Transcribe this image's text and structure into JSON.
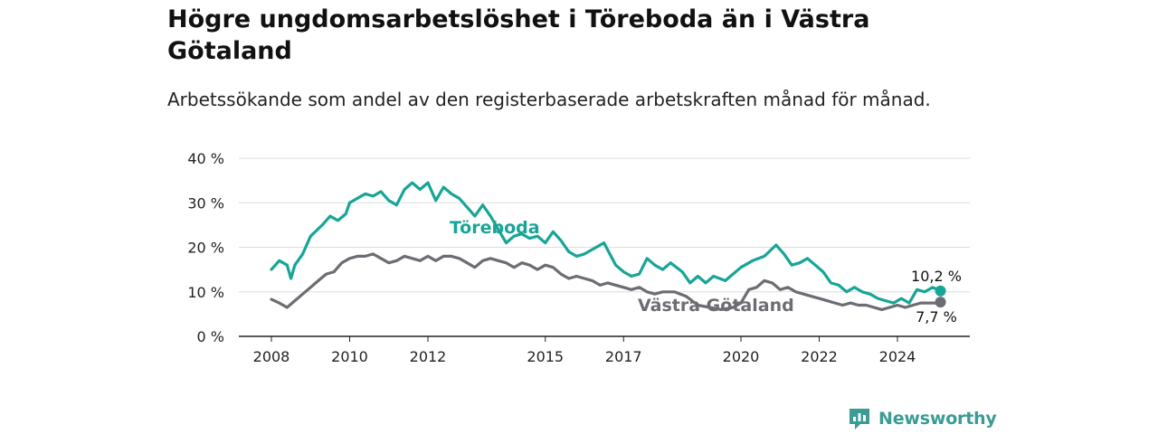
{
  "title": "Högre ungdomsarbetslöshet i Töreboda än i Västra Götaland",
  "subtitle": "Arbetssökande som andel av den registerbaserade arbetskraften månad för månad.",
  "brand": "Newsworthy",
  "colors": {
    "toreboda": "#17a597",
    "vg": "#6d6c73",
    "grid": "#dddddd",
    "brand": "#3a9c94"
  },
  "chart_data": {
    "type": "line",
    "title": "Högre ungdomsarbetslöshet i Töreboda än i Västra Götaland",
    "subtitle": "Arbetssökande som andel av den registerbaserade arbetskraften månad för månad.",
    "xlabel": "",
    "ylabel": "",
    "ylim": [
      0,
      40
    ],
    "yticks": [
      0,
      10,
      20,
      30,
      40
    ],
    "ytick_labels": [
      "0 %",
      "10 %",
      "20 %",
      "30 %",
      "40 %"
    ],
    "xticks": [
      2008,
      2010,
      2012,
      2015,
      2017,
      2020,
      2022,
      2024
    ],
    "grid": true,
    "legend": "inline labels",
    "series": [
      {
        "name": "Töreboda",
        "end_label": "10,2 %",
        "points": [
          [
            2008.0,
            15.0
          ],
          [
            2008.2,
            17.0
          ],
          [
            2008.4,
            16.0
          ],
          [
            2008.5,
            13.0
          ],
          [
            2008.6,
            16.0
          ],
          [
            2008.8,
            18.5
          ],
          [
            2009.0,
            22.5
          ],
          [
            2009.3,
            25.0
          ],
          [
            2009.5,
            27.0
          ],
          [
            2009.7,
            26.0
          ],
          [
            2009.9,
            27.5
          ],
          [
            2010.0,
            30.0
          ],
          [
            2010.2,
            31.0
          ],
          [
            2010.4,
            32.0
          ],
          [
            2010.6,
            31.5
          ],
          [
            2010.8,
            32.5
          ],
          [
            2011.0,
            30.5
          ],
          [
            2011.2,
            29.5
          ],
          [
            2011.4,
            33.0
          ],
          [
            2011.6,
            34.5
          ],
          [
            2011.8,
            33.0
          ],
          [
            2012.0,
            34.5
          ],
          [
            2012.2,
            30.5
          ],
          [
            2012.4,
            33.5
          ],
          [
            2012.6,
            32.0
          ],
          [
            2012.8,
            31.0
          ],
          [
            2013.0,
            29.0
          ],
          [
            2013.2,
            27.0
          ],
          [
            2013.4,
            29.5
          ],
          [
            2013.6,
            27.0
          ],
          [
            2013.8,
            24.0
          ],
          [
            2014.0,
            21.0
          ],
          [
            2014.2,
            22.5
          ],
          [
            2014.4,
            23.0
          ],
          [
            2014.6,
            22.0
          ],
          [
            2014.8,
            22.5
          ],
          [
            2015.0,
            21.0
          ],
          [
            2015.2,
            23.5
          ],
          [
            2015.4,
            21.5
          ],
          [
            2015.6,
            19.0
          ],
          [
            2015.8,
            18.0
          ],
          [
            2016.0,
            18.5
          ],
          [
            2016.3,
            20.0
          ],
          [
            2016.5,
            21.0
          ],
          [
            2016.8,
            16.0
          ],
          [
            2017.0,
            14.5
          ],
          [
            2017.2,
            13.5
          ],
          [
            2017.4,
            14.0
          ],
          [
            2017.6,
            17.5
          ],
          [
            2017.8,
            16.0
          ],
          [
            2018.0,
            15.0
          ],
          [
            2018.2,
            16.5
          ],
          [
            2018.5,
            14.5
          ],
          [
            2018.7,
            12.0
          ],
          [
            2018.9,
            13.5
          ],
          [
            2019.1,
            12.0
          ],
          [
            2019.3,
            13.5
          ],
          [
            2019.6,
            12.5
          ],
          [
            2019.8,
            14.0
          ],
          [
            2020.0,
            15.5
          ],
          [
            2020.3,
            17.0
          ],
          [
            2020.6,
            18.0
          ],
          [
            2020.9,
            20.5
          ],
          [
            2021.1,
            18.5
          ],
          [
            2021.3,
            16.0
          ],
          [
            2021.5,
            16.5
          ],
          [
            2021.7,
            17.5
          ],
          [
            2021.9,
            16.0
          ],
          [
            2022.1,
            14.5
          ],
          [
            2022.3,
            12.0
          ],
          [
            2022.5,
            11.5
          ],
          [
            2022.7,
            10.0
          ],
          [
            2022.9,
            11.0
          ],
          [
            2023.1,
            10.0
          ],
          [
            2023.3,
            9.5
          ],
          [
            2023.5,
            8.5
          ],
          [
            2023.7,
            8.0
          ],
          [
            2023.9,
            7.5
          ],
          [
            2024.1,
            8.5
          ],
          [
            2024.3,
            7.5
          ],
          [
            2024.5,
            10.5
          ],
          [
            2024.7,
            10.0
          ],
          [
            2024.9,
            11.0
          ],
          [
            2025.1,
            10.2
          ]
        ]
      },
      {
        "name": "Västra Götaland",
        "end_label": "7,7 %",
        "points": [
          [
            2008.0,
            8.3
          ],
          [
            2008.2,
            7.5
          ],
          [
            2008.4,
            6.5
          ],
          [
            2008.6,
            8.0
          ],
          [
            2008.8,
            9.5
          ],
          [
            2009.0,
            11.0
          ],
          [
            2009.2,
            12.5
          ],
          [
            2009.4,
            14.0
          ],
          [
            2009.6,
            14.5
          ],
          [
            2009.8,
            16.5
          ],
          [
            2010.0,
            17.5
          ],
          [
            2010.2,
            18.0
          ],
          [
            2010.4,
            18.0
          ],
          [
            2010.6,
            18.5
          ],
          [
            2010.8,
            17.5
          ],
          [
            2011.0,
            16.5
          ],
          [
            2011.2,
            17.0
          ],
          [
            2011.4,
            18.0
          ],
          [
            2011.6,
            17.5
          ],
          [
            2011.8,
            17.0
          ],
          [
            2012.0,
            18.0
          ],
          [
            2012.2,
            17.0
          ],
          [
            2012.4,
            18.0
          ],
          [
            2012.6,
            18.0
          ],
          [
            2012.8,
            17.5
          ],
          [
            2013.0,
            16.5
          ],
          [
            2013.2,
            15.5
          ],
          [
            2013.4,
            17.0
          ],
          [
            2013.6,
            17.5
          ],
          [
            2013.8,
            17.0
          ],
          [
            2014.0,
            16.5
          ],
          [
            2014.2,
            15.5
          ],
          [
            2014.4,
            16.5
          ],
          [
            2014.6,
            16.0
          ],
          [
            2014.8,
            15.0
          ],
          [
            2015.0,
            16.0
          ],
          [
            2015.2,
            15.5
          ],
          [
            2015.4,
            14.0
          ],
          [
            2015.6,
            13.0
          ],
          [
            2015.8,
            13.5
          ],
          [
            2016.0,
            13.0
          ],
          [
            2016.2,
            12.5
          ],
          [
            2016.4,
            11.5
          ],
          [
            2016.6,
            12.0
          ],
          [
            2016.8,
            11.5
          ],
          [
            2017.0,
            11.0
          ],
          [
            2017.2,
            10.5
          ],
          [
            2017.4,
            11.0
          ],
          [
            2017.6,
            10.0
          ],
          [
            2017.8,
            9.5
          ],
          [
            2018.0,
            10.0
          ],
          [
            2018.3,
            10.0
          ],
          [
            2018.6,
            9.0
          ],
          [
            2018.9,
            7.0
          ],
          [
            2019.2,
            6.5
          ],
          [
            2019.5,
            6.0
          ],
          [
            2019.8,
            6.5
          ],
          [
            2020.0,
            7.5
          ],
          [
            2020.2,
            10.5
          ],
          [
            2020.4,
            11.0
          ],
          [
            2020.6,
            12.5
          ],
          [
            2020.8,
            12.0
          ],
          [
            2021.0,
            10.5
          ],
          [
            2021.2,
            11.0
          ],
          [
            2021.4,
            10.0
          ],
          [
            2021.6,
            9.5
          ],
          [
            2021.8,
            9.0
          ],
          [
            2022.0,
            8.5
          ],
          [
            2022.2,
            8.0
          ],
          [
            2022.4,
            7.5
          ],
          [
            2022.6,
            7.0
          ],
          [
            2022.8,
            7.5
          ],
          [
            2023.0,
            7.0
          ],
          [
            2023.2,
            7.0
          ],
          [
            2023.4,
            6.5
          ],
          [
            2023.6,
            6.0
          ],
          [
            2023.8,
            6.5
          ],
          [
            2024.0,
            7.0
          ],
          [
            2024.2,
            6.5
          ],
          [
            2024.4,
            7.0
          ],
          [
            2024.6,
            7.5
          ],
          [
            2024.8,
            7.5
          ],
          [
            2025.0,
            7.5
          ],
          [
            2025.1,
            7.7
          ]
        ]
      }
    ]
  }
}
